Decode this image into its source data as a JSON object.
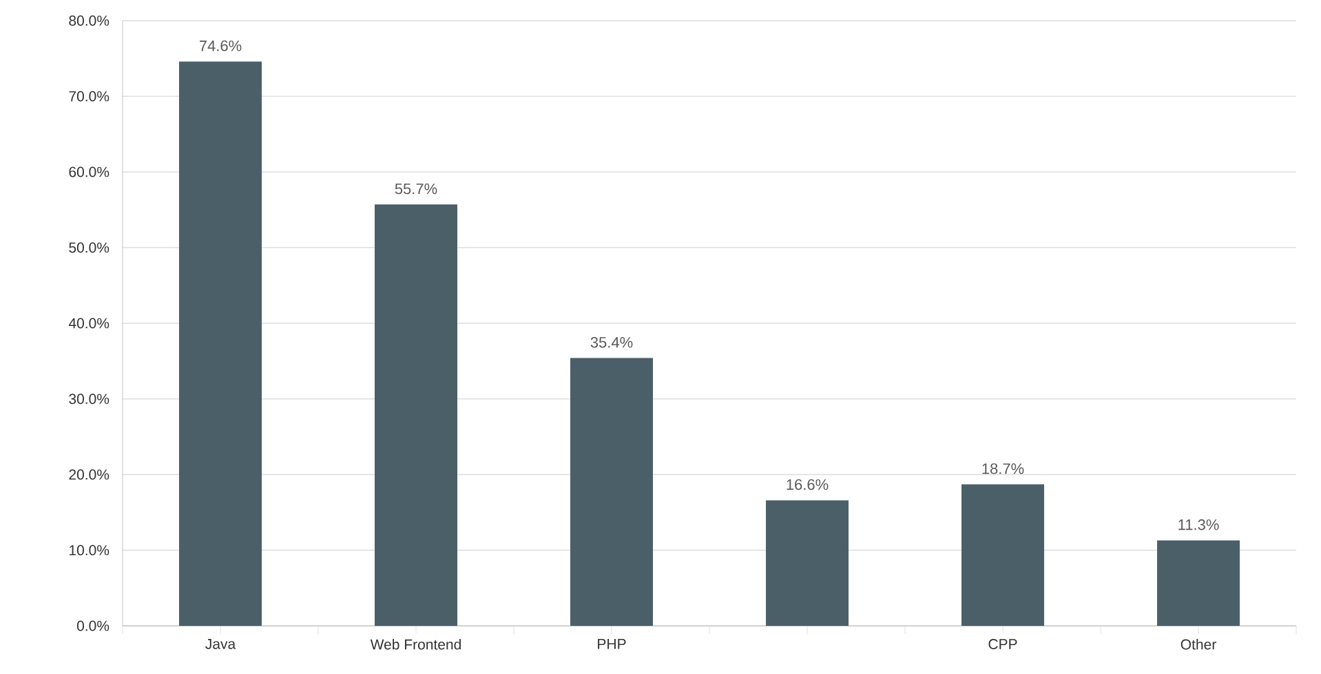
{
  "chart_data": {
    "type": "bar",
    "categories": [
      "Java",
      "Web Frontend",
      "PHP",
      null,
      "CPP",
      "Other"
    ],
    "values": [
      74.6,
      55.7,
      35.4,
      16.6,
      18.7,
      11.3
    ],
    "value_labels": [
      "74.6%",
      "55.7%",
      "35.4%",
      "16.6%",
      "18.7%",
      "11.3%"
    ],
    "color": "#4b5f69",
    "ylim": [
      0,
      80
    ],
    "yticks": [
      {
        "value": 0,
        "label": "0.0%"
      },
      {
        "value": 10,
        "label": "10.0%"
      },
      {
        "value": 20,
        "label": "20.0%"
      },
      {
        "value": 30,
        "label": "30.0%"
      },
      {
        "value": 40,
        "label": "40.0%"
      },
      {
        "value": 50,
        "label": "50.0%"
      },
      {
        "value": 60,
        "label": "60.0%"
      },
      {
        "value": 70,
        "label": "70.0%"
      },
      {
        "value": 80,
        "label": "80.0%"
      }
    ],
    "grid": "y"
  }
}
